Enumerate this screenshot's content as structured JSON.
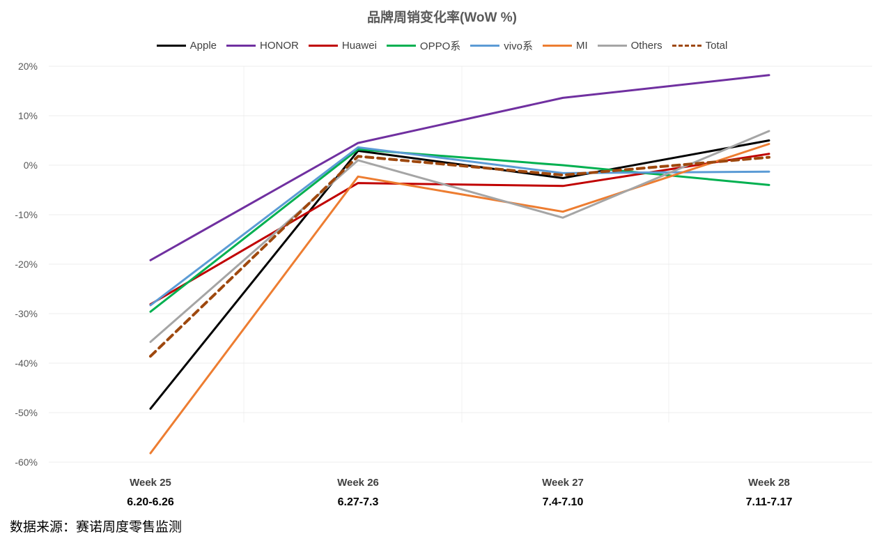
{
  "chart_data": {
    "type": "line",
    "title": "品牌周销变化率(WoW %)",
    "categories": [
      {
        "week": "Week 25",
        "range": "6.20-6.26"
      },
      {
        "week": "Week 26",
        "range": "6.27-7.3"
      },
      {
        "week": "Week 27",
        "range": "7.4-7.10"
      },
      {
        "week": "Week 28",
        "range": "7.11-7.17"
      }
    ],
    "ylim": [
      -60,
      20
    ],
    "yticks": [
      20,
      10,
      0,
      -10,
      -20,
      -30,
      -40,
      -50,
      -60
    ],
    "ytick_labels": [
      "20%",
      "10%",
      "0%",
      "-10%",
      "-20%",
      "-30%",
      "-40%",
      "-50%",
      "-60%"
    ],
    "legend_position": "top",
    "series": [
      {
        "name": "Apple",
        "color": "#000000",
        "dashed": false,
        "values": [
          -49.2,
          2.9,
          -2.6,
          5.0
        ]
      },
      {
        "name": "HONOR",
        "color": "#7030A0",
        "dashed": false,
        "values": [
          -19.2,
          4.5,
          13.6,
          18.2
        ]
      },
      {
        "name": "Huawei",
        "color": "#C00000",
        "dashed": false,
        "values": [
          -28.1,
          -3.6,
          -4.2,
          2.3
        ]
      },
      {
        "name": "OPPO系",
        "color": "#00B050",
        "dashed": false,
        "values": [
          -29.6,
          3.2,
          0.0,
          -4.0
        ]
      },
      {
        "name": "vivo系",
        "color": "#5B9BD5",
        "dashed": false,
        "values": [
          -28.3,
          3.6,
          -1.6,
          -1.3
        ]
      },
      {
        "name": "MI",
        "color": "#ED7D31",
        "dashed": false,
        "values": [
          -58.2,
          -2.3,
          -9.4,
          4.3
        ]
      },
      {
        "name": "Others",
        "color": "#A5A5A5",
        "dashed": false,
        "values": [
          -35.7,
          1.0,
          -10.6,
          6.9
        ]
      },
      {
        "name": "Total",
        "color": "#9E480E",
        "dashed": true,
        "values": [
          -38.6,
          1.8,
          -2.0,
          1.6
        ]
      }
    ]
  },
  "source_note": "数据来源：赛诺周度零售监测"
}
